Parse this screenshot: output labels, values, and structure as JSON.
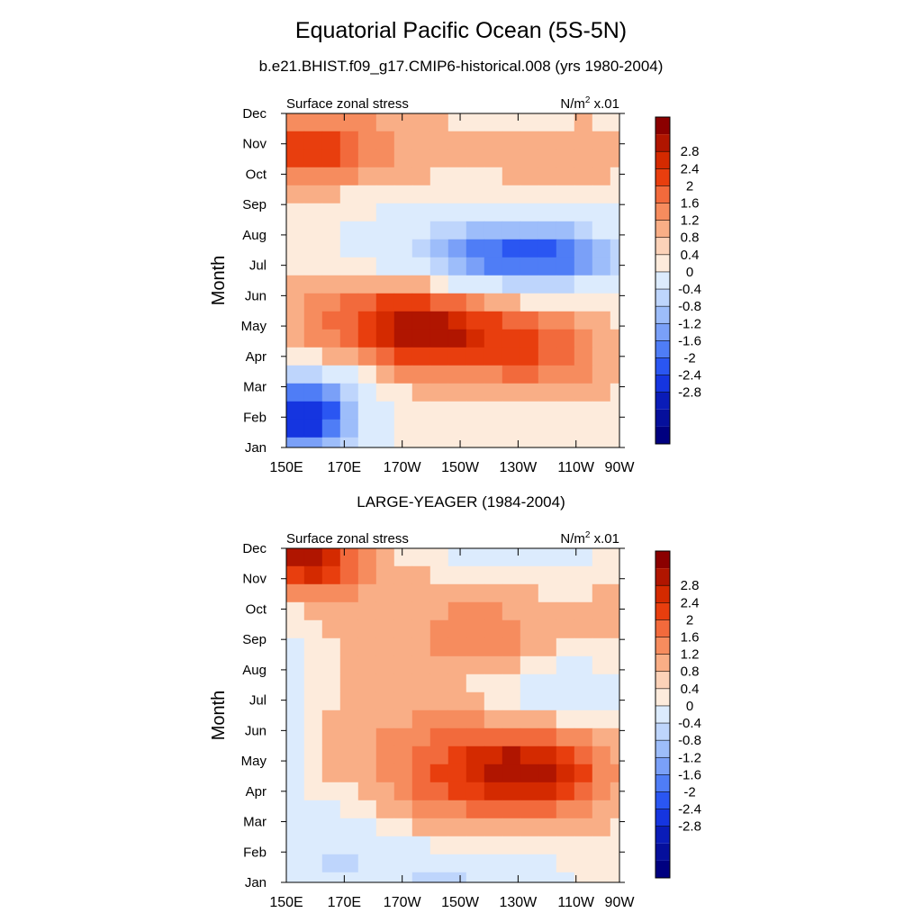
{
  "chart_data": {
    "type": "heatmap",
    "title": "Equatorial Pacific Ocean (5S-5N)",
    "units": "N/m² x.01",
    "x_tick_labels": [
      "150E",
      "170E",
      "170W",
      "150W",
      "130W",
      "110W",
      "90W"
    ],
    "x_ticks_lon": [
      150,
      170,
      190,
      210,
      230,
      250,
      270
    ],
    "xlim": [
      150,
      265
    ],
    "y_tick_labels": [
      "Jan",
      "Feb",
      "Mar",
      "Apr",
      "May",
      "Jun",
      "Jul",
      "Aug",
      "Sep",
      "Oct",
      "Nov",
      "Dec"
    ],
    "ylabel": "Month",
    "colorbar": {
      "labels": [
        "2.8",
        "2.4",
        "2",
        "1.6",
        "1.2",
        "0.8",
        "0.4",
        "0",
        "-0.4",
        "-0.8",
        "-1.2",
        "-1.6",
        "-2",
        "-2.4",
        "-2.8"
      ],
      "colors": [
        "#8B0000",
        "#B01500",
        "#D42A00",
        "#E83E0E",
        "#F26A3C",
        "#F68C5E",
        "#F9AE86",
        "#FCD2B8",
        "#FDEBDC",
        "#DCEBFD",
        "#BED5FC",
        "#9DBDFA",
        "#7AA0F8",
        "#4F7DF6",
        "#2A56F2",
        "#1535E0",
        "#0A1CB8",
        "#050F9C",
        "#000080"
      ]
    },
    "panels": [
      {
        "subtitle": "b.e21.BHIST.f09_g17.CMIP6-historical.008 (yrs 1980-2004)",
        "left_label": "Surface zonal stress",
        "right_label": "N/m",
        "right_sup": "2",
        "right_suffix": " x.01",
        "features": [
          {
            "lon": 155,
            "month": 1.0,
            "value": -2.2,
            "w": 16,
            "h": 1.2
          },
          {
            "lon": 160,
            "month": 1.3,
            "value": -1.4,
            "w": 20,
            "h": 1.8
          },
          {
            "lon": 160,
            "month": 3.0,
            "value": 0.4,
            "w": 14,
            "h": 1.0
          },
          {
            "lon": 195,
            "month": 4.0,
            "value": 1.6,
            "w": 28,
            "h": 1.2
          },
          {
            "lon": 210,
            "month": 3.5,
            "value": 1.0,
            "w": 40,
            "h": 1.6
          },
          {
            "lon": 240,
            "month": 3.0,
            "value": 0.8,
            "w": 22,
            "h": 1.4
          },
          {
            "lon": 180,
            "month": 5.0,
            "value": 0.6,
            "w": 40,
            "h": 1.6
          },
          {
            "lon": 235,
            "month": 6.3,
            "value": -2.0,
            "w": 30,
            "h": 1.0
          },
          {
            "lon": 225,
            "month": 6.5,
            "value": -1.0,
            "w": 48,
            "h": 1.6
          },
          {
            "lon": 200,
            "month": 6.0,
            "value": -0.3,
            "w": 30,
            "h": 2.0
          },
          {
            "lon": 158,
            "month": 9.8,
            "value": 1.1,
            "w": 22,
            "h": 1.0
          },
          {
            "lon": 165,
            "month": 10.0,
            "value": 0.6,
            "w": 36,
            "h": 1.6
          },
          {
            "lon": 240,
            "month": 9.5,
            "value": 0.4,
            "w": 50,
            "h": 2.2
          },
          {
            "lon": 225,
            "month": 11.0,
            "value": -0.2,
            "w": 20,
            "h": 0.8
          }
        ]
      },
      {
        "subtitle": "LARGE-YEAGER (1984-2004)",
        "left_label": "Surface zonal stress",
        "right_label": "N/m",
        "right_sup": "2",
        "right_suffix": " x.01",
        "features": [
          {
            "lon": 156,
            "month": 10.8,
            "value": 1.8,
            "w": 14,
            "h": 1.0
          },
          {
            "lon": 160,
            "month": 10.4,
            "value": 0.8,
            "w": 20,
            "h": 1.6
          },
          {
            "lon": 200,
            "month": 8.5,
            "value": 0.4,
            "w": 44,
            "h": 3.2
          },
          {
            "lon": 222,
            "month": 8.0,
            "value": 0.6,
            "w": 24,
            "h": 1.3
          },
          {
            "lon": 232,
            "month": 3.6,
            "value": 1.4,
            "w": 24,
            "h": 1.2
          },
          {
            "lon": 220,
            "month": 3.6,
            "value": 0.9,
            "w": 44,
            "h": 1.8
          },
          {
            "lon": 215,
            "month": 4.0,
            "value": 0.4,
            "w": 60,
            "h": 2.6
          },
          {
            "lon": 150,
            "month": 6.0,
            "value": -0.6,
            "w": 10,
            "h": 4.0
          },
          {
            "lon": 165,
            "month": 1.2,
            "value": -0.9,
            "w": 18,
            "h": 1.6
          },
          {
            "lon": 205,
            "month": 0.2,
            "value": -1.1,
            "w": 36,
            "h": 1.0
          },
          {
            "lon": 242,
            "month": 6.3,
            "value": -0.9,
            "w": 30,
            "h": 1.2
          },
          {
            "lon": 230,
            "month": 11.0,
            "value": -0.8,
            "w": 30,
            "h": 0.8
          },
          {
            "lon": 262,
            "month": 9.0,
            "value": 0.3,
            "w": 10,
            "h": 2.0
          }
        ]
      }
    ]
  }
}
